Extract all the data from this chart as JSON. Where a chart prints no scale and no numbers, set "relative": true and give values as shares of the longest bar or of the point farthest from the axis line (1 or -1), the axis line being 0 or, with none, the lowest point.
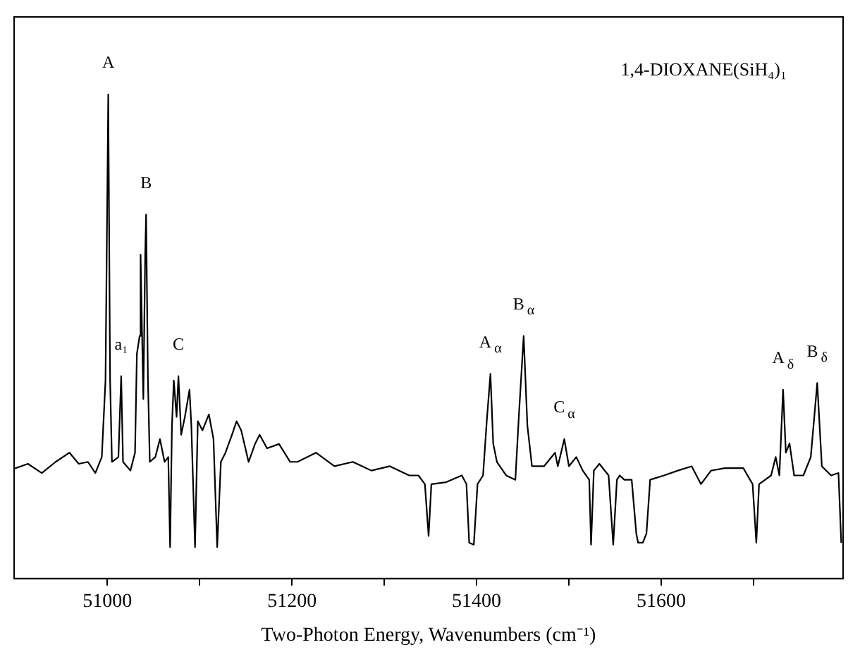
{
  "chart_data": {
    "type": "line",
    "title": "1,4-DIOXANE(SiH₄)₁",
    "xlabel": "Two-Photon Energy, Wavenumbers (cm⁻¹)",
    "relative": true,
    "color": "#000000",
    "marker": "none",
    "grid": false,
    "legend": false,
    "xlim": [
      50899,
      51797
    ],
    "xticks": [
      51000,
      {
        "value": 51100,
        "label": null
      },
      51200,
      {
        "value": 51300,
        "label": null
      },
      51400,
      {
        "value": 51500,
        "label": null
      },
      51600,
      {
        "value": 51700,
        "label": null
      }
    ],
    "x": [
      50899,
      50914,
      50929,
      50944,
      50959,
      50969,
      50979,
      50987,
      50994,
      50998,
      51001,
      51003,
      51005,
      51012,
      51015,
      51017,
      51025,
      51030,
      51032,
      51035,
      51036,
      51039,
      51041,
      51042,
      51044,
      51046,
      51052,
      51057,
      51062,
      51066,
      51068,
      51070,
      51072,
      51075,
      51077,
      51080,
      51084,
      51089,
      51091,
      51095,
      51098,
      51103,
      51110,
      51115,
      51119,
      51123,
      51128,
      51135,
      51140,
      51145,
      51153,
      51160,
      51165,
      51173,
      51186,
      51198,
      51206,
      51226,
      51246,
      51266,
      51286,
      51306,
      51327,
      51337,
      51344,
      51348,
      51351,
      51367,
      51384,
      51389,
      51392,
      51397,
      51401,
      51407,
      51411,
      51415,
      51418,
      51422,
      51432,
      51442,
      51446,
      51451,
      51455,
      51460,
      51473,
      51485,
      51488,
      51495,
      51500,
      51508,
      51515,
      51522,
      51524,
      51527,
      51533,
      51543,
      51548,
      51552,
      51555,
      51560,
      51568,
      51573,
      51575,
      51580,
      51584,
      51588,
      51603,
      51618,
      51633,
      51643,
      51654,
      51669,
      51689,
      51699,
      51703,
      51706,
      51719,
      51724,
      51728,
      51732,
      51735,
      51739,
      51744,
      51754,
      51762,
      51769,
      51774,
      51784,
      51792,
      51795
    ],
    "values": [
      0.227,
      0.237,
      0.218,
      0.241,
      0.26,
      0.237,
      0.241,
      0.218,
      0.251,
      0.409,
      1.0,
      0.409,
      0.241,
      0.251,
      0.418,
      0.241,
      0.223,
      0.26,
      0.464,
      0.501,
      0.669,
      0.371,
      0.669,
      0.752,
      0.409,
      0.241,
      0.251,
      0.288,
      0.241,
      0.251,
      0.065,
      0.316,
      0.409,
      0.334,
      0.418,
      0.297,
      0.334,
      0.39,
      0.316,
      0.065,
      0.325,
      0.306,
      0.339,
      0.288,
      0.065,
      0.241,
      0.26,
      0.297,
      0.325,
      0.306,
      0.241,
      0.278,
      0.297,
      0.269,
      0.278,
      0.241,
      0.241,
      0.26,
      0.232,
      0.241,
      0.223,
      0.232,
      0.213,
      0.213,
      0.195,
      0.088,
      0.195,
      0.199,
      0.213,
      0.195,
      0.074,
      0.07,
      0.195,
      0.213,
      0.325,
      0.423,
      0.279,
      0.241,
      0.213,
      0.204,
      0.343,
      0.501,
      0.316,
      0.232,
      0.232,
      0.26,
      0.232,
      0.288,
      0.232,
      0.251,
      0.223,
      0.204,
      0.07,
      0.223,
      0.237,
      0.213,
      0.07,
      0.204,
      0.213,
      0.204,
      0.204,
      0.093,
      0.074,
      0.074,
      0.093,
      0.204,
      0.213,
      0.223,
      0.232,
      0.195,
      0.223,
      0.228,
      0.228,
      0.195,
      0.074,
      0.195,
      0.213,
      0.251,
      0.213,
      0.39,
      0.26,
      0.279,
      0.213,
      0.213,
      0.251,
      0.404,
      0.232,
      0.213,
      0.218,
      0.074
    ],
    "annotations": [
      {
        "text": "A",
        "x": 51001,
        "y": 1.0
      },
      {
        "text": "B",
        "x": 51042,
        "y": 0.752
      },
      {
        "text": "a₁",
        "x": 51015,
        "y": 0.418
      },
      {
        "text": "C",
        "x": 51077,
        "y": 0.418
      },
      {
        "text": "A$_{α}$",
        "x": 51415,
        "y": 0.423
      },
      {
        "text": "B$_{α}$",
        "x": 51451,
        "y": 0.501
      },
      {
        "text": "C$_{α}$",
        "x": 51495,
        "y": 0.288
      },
      {
        "text": "A$_{δ}$",
        "x": 51732,
        "y": 0.39
      },
      {
        "text": "B$_{δ}$",
        "x": 51769,
        "y": 0.404
      }
    ]
  }
}
